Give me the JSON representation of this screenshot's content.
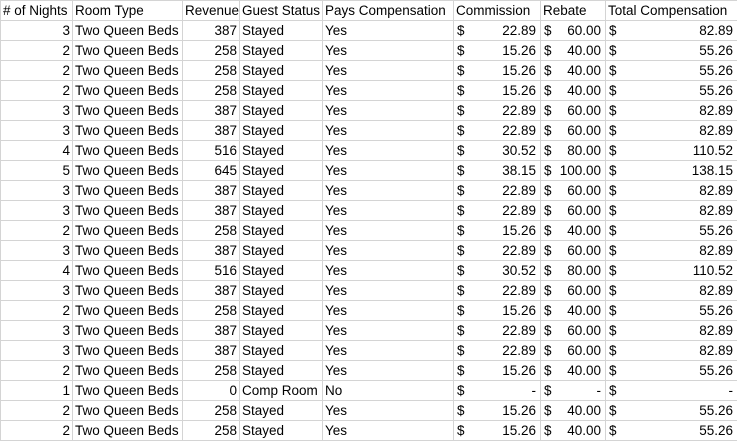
{
  "headers": [
    "# of Nights",
    "Room Type",
    "Revenue",
    "Guest Status",
    "Pays Compensation",
    "Commission",
    "Rebate",
    "Total Compensation"
  ],
  "currency_symbol": "$",
  "rows": [
    {
      "nights": "3",
      "room": "Two Queen Beds",
      "revenue": "387",
      "status": "Stayed",
      "pays": "Yes",
      "commission": "22.89",
      "rebate": "60.00",
      "total": "82.89"
    },
    {
      "nights": "2",
      "room": "Two Queen Beds",
      "revenue": "258",
      "status": "Stayed",
      "pays": "Yes",
      "commission": "15.26",
      "rebate": "40.00",
      "total": "55.26"
    },
    {
      "nights": "2",
      "room": "Two Queen Beds",
      "revenue": "258",
      "status": "Stayed",
      "pays": "Yes",
      "commission": "15.26",
      "rebate": "40.00",
      "total": "55.26"
    },
    {
      "nights": "2",
      "room": "Two Queen Beds",
      "revenue": "258",
      "status": "Stayed",
      "pays": "Yes",
      "commission": "15.26",
      "rebate": "40.00",
      "total": "55.26"
    },
    {
      "nights": "3",
      "room": "Two Queen Beds",
      "revenue": "387",
      "status": "Stayed",
      "pays": "Yes",
      "commission": "22.89",
      "rebate": "60.00",
      "total": "82.89"
    },
    {
      "nights": "3",
      "room": "Two Queen Beds",
      "revenue": "387",
      "status": "Stayed",
      "pays": "Yes",
      "commission": "22.89",
      "rebate": "60.00",
      "total": "82.89"
    },
    {
      "nights": "4",
      "room": "Two Queen Beds",
      "revenue": "516",
      "status": "Stayed",
      "pays": "Yes",
      "commission": "30.52",
      "rebate": "80.00",
      "total": "110.52"
    },
    {
      "nights": "5",
      "room": "Two Queen Beds",
      "revenue": "645",
      "status": "Stayed",
      "pays": "Yes",
      "commission": "38.15",
      "rebate": "100.00",
      "total": "138.15"
    },
    {
      "nights": "3",
      "room": "Two Queen Beds",
      "revenue": "387",
      "status": "Stayed",
      "pays": "Yes",
      "commission": "22.89",
      "rebate": "60.00",
      "total": "82.89"
    },
    {
      "nights": "3",
      "room": "Two Queen Beds",
      "revenue": "387",
      "status": "Stayed",
      "pays": "Yes",
      "commission": "22.89",
      "rebate": "60.00",
      "total": "82.89"
    },
    {
      "nights": "2",
      "room": "Two Queen Beds",
      "revenue": "258",
      "status": "Stayed",
      "pays": "Yes",
      "commission": "15.26",
      "rebate": "40.00",
      "total": "55.26"
    },
    {
      "nights": "3",
      "room": "Two Queen Beds",
      "revenue": "387",
      "status": "Stayed",
      "pays": "Yes",
      "commission": "22.89",
      "rebate": "60.00",
      "total": "82.89"
    },
    {
      "nights": "4",
      "room": "Two Queen Beds",
      "revenue": "516",
      "status": "Stayed",
      "pays": "Yes",
      "commission": "30.52",
      "rebate": "80.00",
      "total": "110.52"
    },
    {
      "nights": "3",
      "room": "Two Queen Beds",
      "revenue": "387",
      "status": "Stayed",
      "pays": "Yes",
      "commission": "22.89",
      "rebate": "60.00",
      "total": "82.89"
    },
    {
      "nights": "2",
      "room": "Two Queen Beds",
      "revenue": "258",
      "status": "Stayed",
      "pays": "Yes",
      "commission": "15.26",
      "rebate": "40.00",
      "total": "55.26"
    },
    {
      "nights": "3",
      "room": "Two Queen Beds",
      "revenue": "387",
      "status": "Stayed",
      "pays": "Yes",
      "commission": "22.89",
      "rebate": "60.00",
      "total": "82.89"
    },
    {
      "nights": "3",
      "room": "Two Queen Beds",
      "revenue": "387",
      "status": "Stayed",
      "pays": "Yes",
      "commission": "22.89",
      "rebate": "60.00",
      "total": "82.89"
    },
    {
      "nights": "2",
      "room": "Two Queen Beds",
      "revenue": "258",
      "status": "Stayed",
      "pays": "Yes",
      "commission": "15.26",
      "rebate": "40.00",
      "total": "55.26"
    },
    {
      "nights": "1",
      "room": "Two Queen Beds",
      "revenue": "0",
      "status": "Comp Room",
      "pays": "No",
      "commission": "-",
      "rebate": "-",
      "total": "-"
    },
    {
      "nights": "2",
      "room": "Two Queen Beds",
      "revenue": "258",
      "status": "Stayed",
      "pays": "Yes",
      "commission": "15.26",
      "rebate": "40.00",
      "total": "55.26"
    },
    {
      "nights": "2",
      "room": "Two Queen Beds",
      "revenue": "258",
      "status": "Stayed",
      "pays": "Yes",
      "commission": "15.26",
      "rebate": "40.00",
      "total": "55.26"
    }
  ]
}
